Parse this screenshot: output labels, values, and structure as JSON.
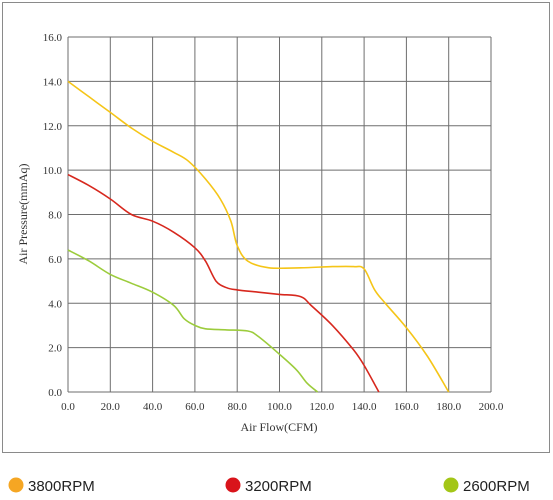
{
  "chart_data": {
    "type": "line",
    "xlabel": "Air Flow(CFM)",
    "ylabel": "Air Pressure(mmAq)",
    "xlim": [
      0,
      200
    ],
    "ylim": [
      0,
      16
    ],
    "x_ticks": [
      "0.0",
      "20.0",
      "40.0",
      "60.0",
      "80.0",
      "100.0",
      "120.0",
      "140.0",
      "160.0",
      "180.0",
      "200.0"
    ],
    "y_ticks": [
      "0.0",
      "2.0",
      "4.0",
      "6.0",
      "8.0",
      "10.0",
      "12.0",
      "14.0",
      "16.0"
    ],
    "grid": true,
    "legend_position": "bottom",
    "series": [
      {
        "name": "3800RPM",
        "color": "#f5c518",
        "marker_color": "#f5a623",
        "points": [
          [
            0,
            14.0
          ],
          [
            10,
            13.3
          ],
          [
            20,
            12.6
          ],
          [
            30,
            11.9
          ],
          [
            40,
            11.3
          ],
          [
            50,
            10.8
          ],
          [
            57,
            10.4
          ],
          [
            65,
            9.6
          ],
          [
            72,
            8.7
          ],
          [
            77,
            7.7
          ],
          [
            80,
            6.6
          ],
          [
            85,
            5.9
          ],
          [
            95,
            5.6
          ],
          [
            110,
            5.6
          ],
          [
            125,
            5.65
          ],
          [
            135,
            5.65
          ],
          [
            140,
            5.55
          ],
          [
            145,
            4.6
          ],
          [
            150,
            4.0
          ],
          [
            160,
            2.9
          ],
          [
            170,
            1.6
          ],
          [
            180,
            0.0
          ]
        ]
      },
      {
        "name": "3200RPM",
        "color": "#d7281e",
        "marker_color": "#d9141b",
        "points": [
          [
            0,
            9.8
          ],
          [
            10,
            9.3
          ],
          [
            20,
            8.7
          ],
          [
            30,
            8.0
          ],
          [
            40,
            7.7
          ],
          [
            50,
            7.2
          ],
          [
            60,
            6.5
          ],
          [
            65,
            5.9
          ],
          [
            70,
            5.0
          ],
          [
            75,
            4.7
          ],
          [
            80,
            4.6
          ],
          [
            90,
            4.5
          ],
          [
            100,
            4.4
          ],
          [
            110,
            4.3
          ],
          [
            115,
            3.9
          ],
          [
            125,
            3.0
          ],
          [
            135,
            1.9
          ],
          [
            140,
            1.2
          ],
          [
            147,
            0.0
          ]
        ]
      },
      {
        "name": "2600RPM",
        "color": "#9ccc3c",
        "marker_color": "#a3c617",
        "points": [
          [
            0,
            6.4
          ],
          [
            10,
            5.9
          ],
          [
            20,
            5.3
          ],
          [
            30,
            4.9
          ],
          [
            40,
            4.5
          ],
          [
            50,
            3.9
          ],
          [
            55,
            3.3
          ],
          [
            60,
            3.0
          ],
          [
            65,
            2.85
          ],
          [
            75,
            2.8
          ],
          [
            85,
            2.75
          ],
          [
            90,
            2.5
          ],
          [
            100,
            1.7
          ],
          [
            108,
            1.0
          ],
          [
            113,
            0.4
          ],
          [
            118,
            0.0
          ]
        ]
      }
    ]
  }
}
